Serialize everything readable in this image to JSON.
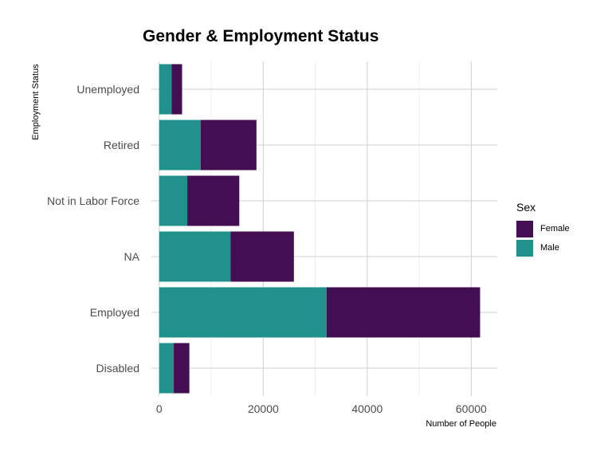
{
  "chart_data": {
    "type": "bar",
    "orientation": "horizontal",
    "stacked": true,
    "title": "Gender & Employment Status",
    "xlabel": "Number of People",
    "ylabel": "Employment Status",
    "categories": [
      "Disabled",
      "Employed",
      "NA",
      "Not in Labor Force",
      "Retired",
      "Unemployed"
    ],
    "series": [
      {
        "name": "Male",
        "color": "#21918c",
        "values": [
          2800,
          32200,
          13700,
          5400,
          8000,
          2400
        ]
      },
      {
        "name": "Female",
        "color": "#440f52",
        "values": [
          3000,
          29500,
          12200,
          10000,
          10700,
          2000
        ]
      }
    ],
    "xlim": [
      -1500,
      65000
    ],
    "xticks": [
      0,
      20000,
      40000,
      60000
    ],
    "xtick_labels": [
      "0",
      "20000",
      "40000",
      "60000"
    ],
    "grid": true,
    "legend": {
      "title": "Sex",
      "position": "right",
      "entries": [
        "Female",
        "Male"
      ]
    }
  }
}
